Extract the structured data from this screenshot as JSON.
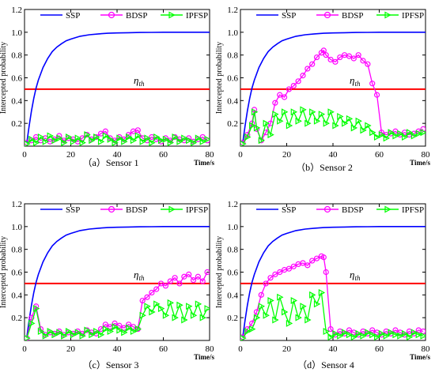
{
  "chart_data": [
    {
      "type": "line",
      "caption": "（a）Sensor 1",
      "xlabel": "Time/s",
      "ylabel": "Intercepted probability",
      "xlim": [
        0,
        80
      ],
      "ylim": [
        0,
        1.2
      ],
      "xticks": [
        "0",
        "20",
        "40",
        "60",
        "80"
      ],
      "yticks": [
        "0.2",
        "0.4",
        "0.6",
        "0.8",
        "1.0",
        "1.2"
      ],
      "threshold": {
        "label": "η",
        "sub": "th",
        "value": 0.5
      },
      "legend": [
        "SSP",
        "BDSP",
        "IPFSP"
      ],
      "series": [
        {
          "name": "SSP",
          "color": "#0000ff",
          "marker": "none",
          "x": [
            1,
            2,
            3,
            4,
            5,
            6,
            8,
            10,
            12,
            14,
            16,
            18,
            20,
            24,
            28,
            32,
            36,
            40,
            45,
            50,
            55,
            60,
            70,
            80
          ],
          "y": [
            0.03,
            0.18,
            0.31,
            0.42,
            0.51,
            0.58,
            0.69,
            0.77,
            0.83,
            0.87,
            0.9,
            0.925,
            0.94,
            0.965,
            0.978,
            0.986,
            0.991,
            0.994,
            0.996,
            0.998,
            0.999,
            1.0,
            1.0,
            1.0
          ]
        },
        {
          "name": "BDSP",
          "color": "#ff00ff",
          "marker": "circle",
          "x": [
            1,
            3,
            5,
            7,
            9,
            11,
            13,
            15,
            17,
            19,
            21,
            23,
            25,
            27,
            29,
            31,
            33,
            35,
            37,
            39,
            41,
            43,
            45,
            47,
            49,
            51,
            53,
            55,
            57,
            59,
            61,
            63,
            65,
            67,
            69,
            71,
            73,
            75,
            77,
            79
          ],
          "y": [
            0.03,
            0.05,
            0.08,
            0.05,
            0.07,
            0.04,
            0.06,
            0.09,
            0.05,
            0.07,
            0.06,
            0.04,
            0.07,
            0.1,
            0.06,
            0.08,
            0.11,
            0.13,
            0.07,
            0.05,
            0.08,
            0.06,
            0.1,
            0.13,
            0.14,
            0.07,
            0.05,
            0.08,
            0.06,
            0.04,
            0.07,
            0.05,
            0.08,
            0.06,
            0.05,
            0.07,
            0.04,
            0.06,
            0.08,
            0.05
          ]
        },
        {
          "name": "IPFSP",
          "color": "#00ff00",
          "marker": "triangle",
          "x": [
            1,
            3,
            5,
            7,
            9,
            11,
            13,
            15,
            17,
            19,
            21,
            23,
            25,
            27,
            29,
            31,
            33,
            35,
            37,
            39,
            41,
            43,
            45,
            47,
            49,
            51,
            53,
            55,
            57,
            59,
            61,
            63,
            65,
            67,
            69,
            71,
            73,
            75,
            77,
            79
          ],
          "y": [
            0.02,
            0.06,
            0.03,
            0.08,
            0.04,
            0.09,
            0.05,
            0.07,
            0.03,
            0.08,
            0.04,
            0.07,
            0.03,
            0.1,
            0.05,
            0.08,
            0.04,
            0.09,
            0.06,
            0.03,
            0.07,
            0.04,
            0.08,
            0.05,
            0.09,
            0.04,
            0.07,
            0.03,
            0.08,
            0.05,
            0.06,
            0.03,
            0.08,
            0.04,
            0.07,
            0.05,
            0.03,
            0.07,
            0.04,
            0.06
          ]
        }
      ]
    },
    {
      "type": "line",
      "caption": "（b）Sensor 2",
      "xlabel": "Time/s",
      "ylabel": "Intercepted probability",
      "xlim": [
        0,
        80
      ],
      "ylim": [
        0,
        1.2
      ],
      "xticks": [
        "0",
        "20",
        "40",
        "60",
        "80"
      ],
      "yticks": [
        "0.2",
        "0.4",
        "0.6",
        "0.8",
        "1.0",
        "1.2"
      ],
      "threshold": {
        "label": "η",
        "sub": "th",
        "value": 0.5
      },
      "legend": [
        "SSP",
        "BDSP",
        "IPFSP"
      ],
      "series": [
        {
          "name": "SSP",
          "color": "#0000ff",
          "marker": "none",
          "x": [
            1,
            2,
            3,
            4,
            5,
            6,
            8,
            10,
            12,
            14,
            16,
            18,
            20,
            24,
            28,
            32,
            36,
            40,
            45,
            50,
            55,
            60,
            70,
            80
          ],
          "y": [
            0.03,
            0.18,
            0.31,
            0.42,
            0.51,
            0.58,
            0.69,
            0.77,
            0.83,
            0.87,
            0.9,
            0.925,
            0.94,
            0.965,
            0.978,
            0.986,
            0.991,
            0.994,
            0.996,
            0.998,
            0.999,
            1.0,
            1.0,
            1.0
          ]
        },
        {
          "name": "BDSP",
          "color": "#ff00ff",
          "marker": "circle",
          "x": [
            1,
            3,
            5,
            6,
            7,
            9,
            11,
            13,
            15,
            17,
            19,
            21,
            23,
            25,
            27,
            29,
            31,
            33,
            35,
            36,
            37,
            39,
            41,
            43,
            45,
            47,
            49,
            51,
            53,
            55,
            57,
            59,
            61,
            63,
            65,
            67,
            69,
            71,
            73,
            75,
            77,
            79
          ],
          "y": [
            0.03,
            0.1,
            0.2,
            0.32,
            0.15,
            0.05,
            0.12,
            0.2,
            0.38,
            0.45,
            0.43,
            0.5,
            0.53,
            0.57,
            0.62,
            0.68,
            0.72,
            0.78,
            0.82,
            0.84,
            0.8,
            0.76,
            0.74,
            0.78,
            0.8,
            0.79,
            0.77,
            0.8,
            0.75,
            0.72,
            0.55,
            0.45,
            0.12,
            0.1,
            0.11,
            0.13,
            0.1,
            0.12,
            0.1,
            0.11,
            0.13,
            0.15
          ]
        },
        {
          "name": "IPFSP",
          "color": "#00ff00",
          "marker": "triangle",
          "x": [
            1,
            3,
            5,
            6,
            7,
            9,
            11,
            13,
            15,
            17,
            19,
            21,
            23,
            25,
            27,
            29,
            31,
            33,
            35,
            37,
            39,
            41,
            43,
            45,
            47,
            49,
            51,
            53,
            55,
            57,
            59,
            61,
            63,
            65,
            67,
            69,
            71,
            73,
            75,
            77,
            79
          ],
          "y": [
            0.02,
            0.08,
            0.18,
            0.3,
            0.16,
            0.05,
            0.2,
            0.1,
            0.28,
            0.22,
            0.3,
            0.18,
            0.3,
            0.22,
            0.32,
            0.2,
            0.3,
            0.22,
            0.28,
            0.2,
            0.3,
            0.18,
            0.26,
            0.2,
            0.24,
            0.16,
            0.22,
            0.14,
            0.18,
            0.12,
            0.08,
            0.1,
            0.07,
            0.12,
            0.09,
            0.11,
            0.08,
            0.12,
            0.09,
            0.11,
            0.12
          ]
        }
      ]
    },
    {
      "type": "line",
      "caption": "（c）Sensor 3",
      "xlabel": "Time/s",
      "ylabel": "Intercepted probability",
      "xlim": [
        0,
        80
      ],
      "ylim": [
        0,
        1.2
      ],
      "xticks": [
        "0",
        "20",
        "40",
        "60",
        "80"
      ],
      "yticks": [
        "0.2",
        "0.4",
        "0.6",
        "0.8",
        "1.0",
        "1.2"
      ],
      "threshold": {
        "label": "η",
        "sub": "th",
        "value": 0.5
      },
      "legend": [
        "SSP",
        "BDSP",
        "IPFSP"
      ],
      "series": [
        {
          "name": "SSP",
          "color": "#0000ff",
          "marker": "none",
          "x": [
            1,
            2,
            3,
            4,
            5,
            6,
            8,
            10,
            12,
            14,
            16,
            18,
            20,
            24,
            28,
            32,
            36,
            40,
            45,
            50,
            55,
            60,
            70,
            80
          ],
          "y": [
            0.03,
            0.18,
            0.31,
            0.42,
            0.51,
            0.58,
            0.69,
            0.77,
            0.83,
            0.87,
            0.9,
            0.925,
            0.94,
            0.965,
            0.978,
            0.986,
            0.991,
            0.994,
            0.996,
            0.998,
            0.999,
            1.0,
            1.0,
            1.0
          ]
        },
        {
          "name": "BDSP",
          "color": "#ff00ff",
          "marker": "circle",
          "x": [
            1,
            3,
            5,
            7,
            9,
            11,
            13,
            15,
            17,
            19,
            21,
            23,
            25,
            27,
            29,
            31,
            33,
            35,
            37,
            39,
            41,
            43,
            45,
            47,
            49,
            51,
            53,
            55,
            57,
            59,
            61,
            63,
            65,
            67,
            69,
            71,
            73,
            75,
            77,
            79
          ],
          "y": [
            0.02,
            0.2,
            0.3,
            0.1,
            0.05,
            0.07,
            0.06,
            0.08,
            0.05,
            0.07,
            0.06,
            0.08,
            0.06,
            0.09,
            0.07,
            0.06,
            0.1,
            0.14,
            0.12,
            0.15,
            0.13,
            0.11,
            0.14,
            0.12,
            0.1,
            0.35,
            0.38,
            0.42,
            0.45,
            0.5,
            0.48,
            0.52,
            0.55,
            0.5,
            0.56,
            0.58,
            0.53,
            0.56,
            0.52,
            0.6
          ]
        },
        {
          "name": "IPFSP",
          "color": "#00ff00",
          "marker": "triangle",
          "x": [
            1,
            3,
            5,
            7,
            9,
            11,
            13,
            15,
            17,
            19,
            21,
            23,
            25,
            27,
            29,
            31,
            33,
            35,
            37,
            39,
            41,
            43,
            45,
            47,
            49,
            51,
            53,
            55,
            57,
            59,
            61,
            63,
            65,
            67,
            69,
            71,
            73,
            75,
            77,
            79
          ],
          "y": [
            0.02,
            0.15,
            0.28,
            0.08,
            0.04,
            0.08,
            0.05,
            0.07,
            0.04,
            0.08,
            0.05,
            0.07,
            0.04,
            0.09,
            0.05,
            0.08,
            0.05,
            0.1,
            0.08,
            0.12,
            0.09,
            0.07,
            0.11,
            0.08,
            0.1,
            0.22,
            0.3,
            0.25,
            0.32,
            0.28,
            0.22,
            0.33,
            0.2,
            0.31,
            0.18,
            0.3,
            0.22,
            0.32,
            0.2,
            0.28
          ]
        }
      ]
    },
    {
      "type": "line",
      "caption": "（d）Sensor 4",
      "xlabel": "Time/s",
      "ylabel": "Intercepted probability",
      "xlim": [
        0,
        80
      ],
      "ylim": [
        0,
        1.2
      ],
      "xticks": [
        "0",
        "20",
        "40",
        "60",
        "80"
      ],
      "yticks": [
        "0.2",
        "0.4",
        "0.6",
        "0.8",
        "1.0",
        "1.2"
      ],
      "threshold": {
        "label": "η",
        "sub": "th",
        "value": 0.5
      },
      "legend": [
        "SSP",
        "BDSP",
        "IPFSP"
      ],
      "series": [
        {
          "name": "SSP",
          "color": "#0000ff",
          "marker": "none",
          "x": [
            1,
            2,
            3,
            4,
            5,
            6,
            8,
            10,
            12,
            14,
            16,
            18,
            20,
            24,
            28,
            32,
            36,
            40,
            45,
            50,
            55,
            60,
            70,
            80
          ],
          "y": [
            0.03,
            0.18,
            0.31,
            0.42,
            0.51,
            0.58,
            0.69,
            0.77,
            0.83,
            0.87,
            0.9,
            0.925,
            0.94,
            0.965,
            0.978,
            0.986,
            0.991,
            0.994,
            0.996,
            0.998,
            0.999,
            1.0,
            1.0,
            1.0
          ]
        },
        {
          "name": "BDSP",
          "color": "#ff00ff",
          "marker": "circle",
          "x": [
            1,
            3,
            5,
            7,
            9,
            11,
            13,
            15,
            17,
            19,
            21,
            23,
            25,
            27,
            29,
            31,
            33,
            35,
            36,
            37,
            39,
            41,
            43,
            45,
            47,
            49,
            51,
            53,
            55,
            57,
            59,
            61,
            63,
            65,
            67,
            69,
            71,
            73,
            75,
            77,
            79
          ],
          "y": [
            0.03,
            0.1,
            0.15,
            0.25,
            0.4,
            0.5,
            0.55,
            0.58,
            0.6,
            0.62,
            0.63,
            0.65,
            0.67,
            0.68,
            0.66,
            0.7,
            0.72,
            0.74,
            0.73,
            0.6,
            0.1,
            0.05,
            0.08,
            0.06,
            0.09,
            0.07,
            0.05,
            0.08,
            0.06,
            0.09,
            0.07,
            0.05,
            0.08,
            0.06,
            0.09,
            0.07,
            0.05,
            0.08,
            0.06,
            0.09,
            0.08
          ]
        },
        {
          "name": "IPFSP",
          "color": "#00ff00",
          "marker": "triangle",
          "x": [
            1,
            3,
            5,
            7,
            9,
            11,
            13,
            15,
            17,
            19,
            21,
            23,
            25,
            27,
            29,
            31,
            33,
            35,
            37,
            39,
            41,
            43,
            45,
            47,
            49,
            51,
            53,
            55,
            57,
            59,
            61,
            63,
            65,
            67,
            69,
            71,
            73,
            75,
            77,
            79
          ],
          "y": [
            0.02,
            0.08,
            0.1,
            0.2,
            0.3,
            0.22,
            0.35,
            0.18,
            0.38,
            0.25,
            0.15,
            0.35,
            0.2,
            0.3,
            0.18,
            0.4,
            0.32,
            0.42,
            0.08,
            0.03,
            0.06,
            0.04,
            0.07,
            0.05,
            0.03,
            0.06,
            0.04,
            0.07,
            0.05,
            0.03,
            0.06,
            0.04,
            0.07,
            0.05,
            0.04,
            0.06,
            0.03,
            0.07,
            0.05,
            0.04
          ]
        }
      ]
    }
  ]
}
